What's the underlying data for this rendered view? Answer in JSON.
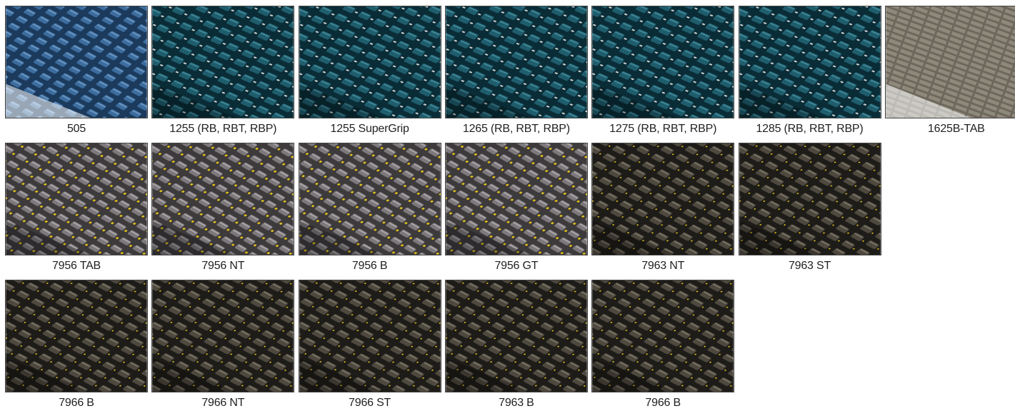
{
  "items": [
    {
      "label": "505"
    },
    {
      "label": "1255 (RB, RBT, RBP)"
    },
    {
      "label": "1255 SuperGrip"
    },
    {
      "label": "1265 (RB, RBT, RBP)"
    },
    {
      "label": "1275 (RB, RBT, RBP)"
    },
    {
      "label": "1285 (RB, RBT, RBP)"
    },
    {
      "label": "1625B-TAB"
    },
    {
      "label": "7956 TAB"
    },
    {
      "label": "7956 NT"
    },
    {
      "label": "7956 B"
    },
    {
      "label": "7956 GT"
    },
    {
      "label": "7963 NT"
    },
    {
      "label": "7963 ST"
    },
    {
      "label": "7966 B"
    },
    {
      "label": "7966 NT"
    },
    {
      "label": "7966 ST"
    },
    {
      "label": "7963 B"
    },
    {
      "label": "7966 B"
    }
  ]
}
